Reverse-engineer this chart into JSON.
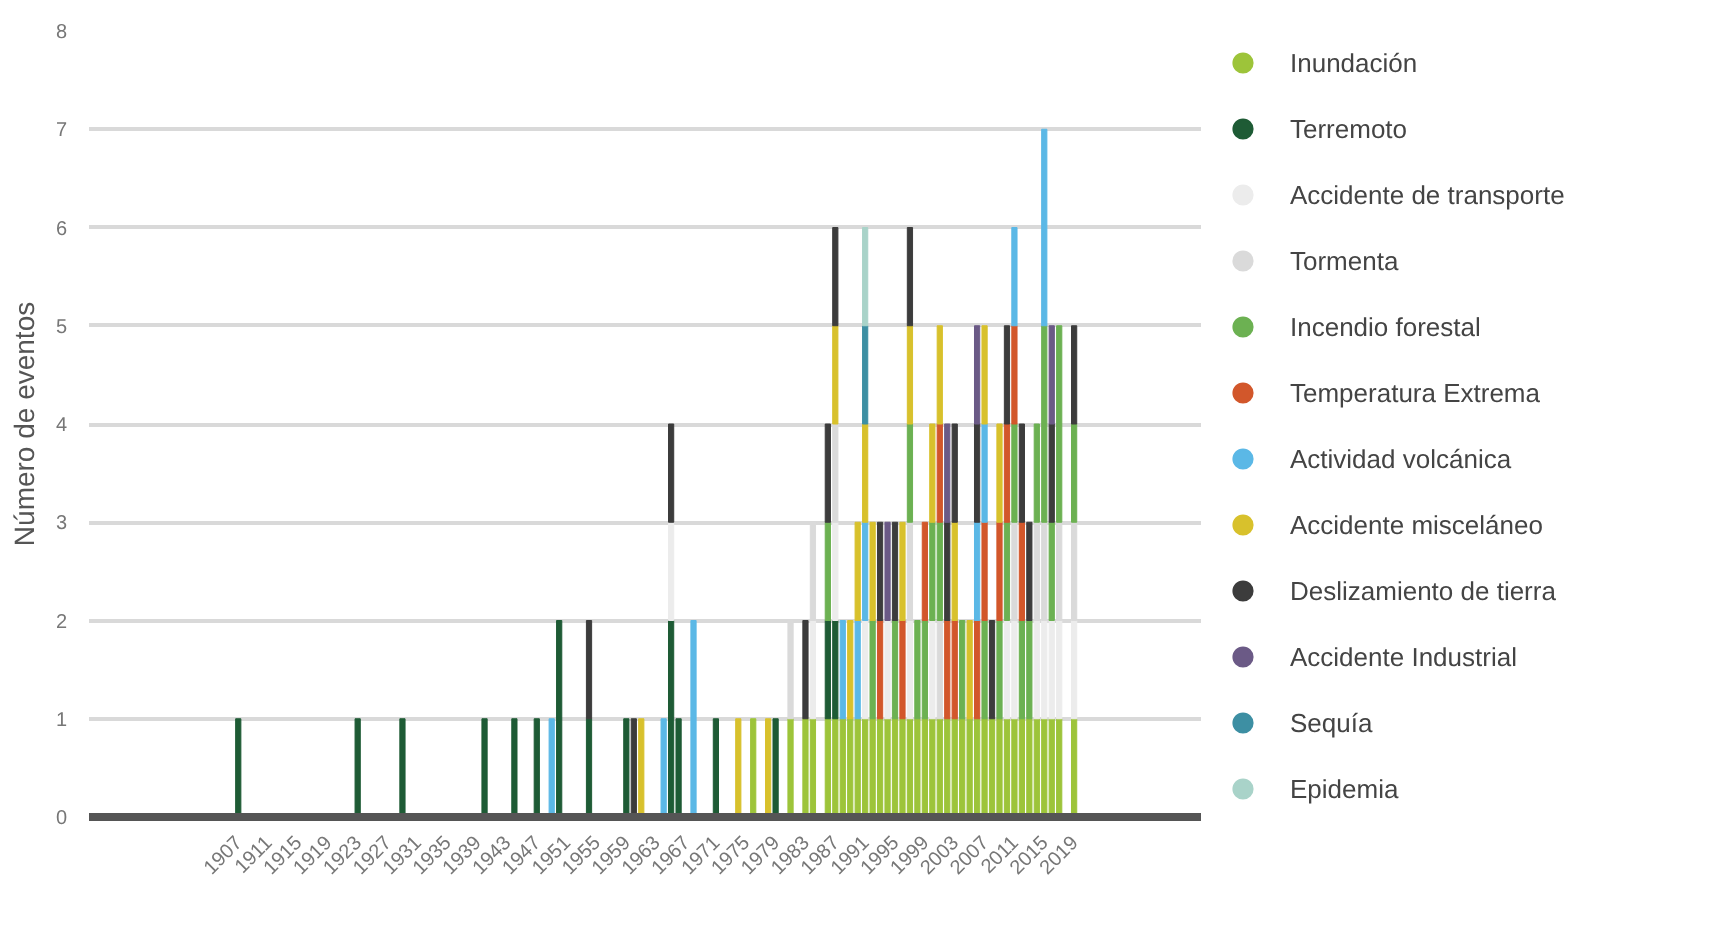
{
  "chart_data": {
    "type": "bar",
    "stacked": true,
    "ylabel": "Número de eventos",
    "xlim": [
      1887,
      2036
    ],
    "xticks": [
      1907,
      1911,
      1915,
      1919,
      1923,
      1927,
      1931,
      1935,
      1939,
      1943,
      1947,
      1951,
      1955,
      1959,
      1963,
      1967,
      1971,
      1975,
      1979,
      1983,
      1987,
      1991,
      1995,
      1999,
      2003,
      2007,
      2011,
      2015,
      2019
    ],
    "ylim": [
      0,
      8
    ],
    "yticks": [
      0,
      1,
      2,
      3,
      4,
      5,
      6,
      7,
      8
    ],
    "grid": "y",
    "legend": "right",
    "x": [
      1907,
      1923,
      1929,
      1940,
      1944,
      1947,
      1949,
      1950,
      1954,
      1959,
      1960,
      1961,
      1964,
      1965,
      1966,
      1968,
      1971,
      1974,
      1976,
      1978,
      1979,
      1981,
      1983,
      1984,
      1986,
      1987,
      1988,
      1989,
      1990,
      1991,
      1992,
      1993,
      1994,
      1995,
      1996,
      1997,
      1998,
      1999,
      2000,
      2001,
      2002,
      2003,
      2004,
      2005,
      2006,
      2007,
      2008,
      2009,
      2010,
      2011,
      2012,
      2013,
      2014,
      2015,
      2016,
      2017,
      2019
    ],
    "series": [
      {
        "name": "Inundación",
        "color": "#9dc43a",
        "values": [
          null,
          null,
          null,
          null,
          null,
          null,
          null,
          null,
          null,
          null,
          null,
          null,
          null,
          null,
          null,
          null,
          null,
          null,
          1,
          null,
          null,
          1,
          1,
          1,
          1,
          1,
          1,
          1,
          1,
          1,
          1,
          1,
          1,
          1,
          1,
          1,
          1,
          1,
          1,
          1,
          1,
          1,
          1,
          1,
          1,
          1,
          1,
          1,
          1,
          1,
          1,
          1,
          1,
          1,
          1,
          1,
          1
        ]
      },
      {
        "name": "Terremoto",
        "color": "#1e5b35",
        "values": [
          1,
          1,
          1,
          1,
          1,
          1,
          null,
          2,
          1,
          1,
          null,
          null,
          null,
          2,
          1,
          null,
          1,
          null,
          null,
          null,
          1,
          null,
          null,
          null,
          1,
          1,
          null,
          null,
          null,
          null,
          null,
          null,
          null,
          null,
          null,
          null,
          null,
          null,
          null,
          null,
          null,
          null,
          null,
          null,
          null,
          null,
          null,
          null,
          null,
          null,
          null,
          null,
          null,
          null,
          null,
          null,
          null
        ]
      },
      {
        "name": "Accidente de transporte",
        "color": "#ececec",
        "values": [
          null,
          null,
          null,
          null,
          null,
          null,
          null,
          null,
          null,
          null,
          null,
          null,
          null,
          1,
          null,
          null,
          null,
          null,
          null,
          null,
          null,
          null,
          null,
          1,
          null,
          1,
          null,
          null,
          null,
          1,
          null,
          null,
          1,
          null,
          null,
          1,
          null,
          null,
          1,
          null,
          null,
          null,
          null,
          null,
          null,
          null,
          null,
          null,
          1,
          1,
          null,
          null,
          1,
          1,
          1,
          1,
          1
        ]
      },
      {
        "name": "Tormenta",
        "color": "#dadada",
        "values": [
          null,
          null,
          null,
          null,
          null,
          null,
          null,
          null,
          null,
          null,
          null,
          null,
          null,
          null,
          null,
          null,
          null,
          null,
          null,
          null,
          null,
          1,
          null,
          1,
          null,
          1,
          null,
          null,
          null,
          null,
          null,
          null,
          null,
          null,
          null,
          1,
          null,
          null,
          null,
          1,
          null,
          null,
          null,
          null,
          null,
          null,
          null,
          null,
          null,
          1,
          null,
          null,
          1,
          1,
          null,
          1,
          1
        ]
      },
      {
        "name": "Incendio forestal",
        "color": "#6cb152",
        "values": [
          null,
          null,
          null,
          null,
          null,
          null,
          null,
          null,
          null,
          null,
          null,
          null,
          null,
          null,
          null,
          null,
          null,
          null,
          null,
          null,
          null,
          null,
          null,
          null,
          1,
          null,
          null,
          null,
          null,
          null,
          1,
          null,
          null,
          1,
          null,
          1,
          1,
          1,
          1,
          1,
          null,
          null,
          1,
          null,
          null,
          1,
          null,
          1,
          1,
          1,
          1,
          1,
          1,
          2,
          1,
          2,
          1
        ]
      },
      {
        "name": "Temperatura Extrema",
        "color": "#d2572b",
        "values": [
          null,
          null,
          null,
          null,
          null,
          null,
          null,
          null,
          null,
          null,
          null,
          null,
          null,
          null,
          null,
          null,
          null,
          null,
          null,
          null,
          null,
          null,
          null,
          null,
          null,
          null,
          null,
          null,
          null,
          null,
          null,
          1,
          null,
          null,
          1,
          null,
          null,
          1,
          null,
          1,
          1,
          1,
          null,
          null,
          1,
          1,
          null,
          1,
          1,
          1,
          1,
          null,
          null,
          null,
          null,
          null,
          null
        ]
      },
      {
        "name": "Actividad volcánica",
        "color": "#5bb8e6",
        "values": [
          null,
          null,
          null,
          null,
          null,
          null,
          1,
          null,
          null,
          null,
          null,
          null,
          1,
          null,
          null,
          2,
          null,
          null,
          null,
          null,
          null,
          null,
          null,
          null,
          null,
          null,
          1,
          null,
          1,
          1,
          null,
          null,
          null,
          null,
          null,
          null,
          null,
          null,
          null,
          null,
          null,
          null,
          null,
          null,
          1,
          1,
          null,
          null,
          null,
          1,
          null,
          null,
          null,
          2,
          null,
          null,
          null
        ]
      },
      {
        "name": "Accidente misceláneo",
        "color": "#d8c12c",
        "values": [
          null,
          null,
          null,
          null,
          null,
          null,
          null,
          null,
          null,
          null,
          null,
          1,
          null,
          null,
          null,
          null,
          null,
          1,
          null,
          1,
          null,
          null,
          null,
          null,
          null,
          1,
          null,
          1,
          1,
          1,
          1,
          null,
          null,
          null,
          1,
          1,
          null,
          null,
          1,
          1,
          null,
          1,
          null,
          1,
          null,
          1,
          null,
          1,
          null,
          null,
          null,
          null,
          null,
          null,
          null,
          null,
          null
        ]
      },
      {
        "name": "Deslizamiento de tierra",
        "color": "#3c3c3c",
        "values": [
          null,
          null,
          null,
          null,
          null,
          null,
          null,
          null,
          1,
          null,
          1,
          null,
          null,
          1,
          null,
          null,
          null,
          null,
          null,
          null,
          null,
          null,
          1,
          null,
          1,
          1,
          null,
          null,
          null,
          null,
          null,
          1,
          null,
          1,
          null,
          1,
          null,
          null,
          null,
          null,
          1,
          1,
          null,
          null,
          1,
          null,
          1,
          null,
          1,
          null,
          1,
          1,
          null,
          null,
          1,
          null,
          1
        ]
      },
      {
        "name": "Accidente Industrial",
        "color": "#6b5a86",
        "values": [
          null,
          null,
          null,
          null,
          null,
          null,
          null,
          null,
          null,
          null,
          null,
          null,
          null,
          null,
          null,
          null,
          null,
          null,
          null,
          null,
          null,
          null,
          null,
          null,
          null,
          null,
          null,
          null,
          null,
          null,
          null,
          null,
          1,
          null,
          null,
          null,
          null,
          null,
          null,
          null,
          1,
          null,
          null,
          null,
          1,
          null,
          null,
          null,
          null,
          null,
          null,
          null,
          null,
          null,
          1,
          null,
          null
        ]
      },
      {
        "name": "Sequía",
        "color": "#3d8fa3",
        "values": [
          null,
          null,
          null,
          null,
          null,
          null,
          null,
          null,
          null,
          null,
          null,
          null,
          null,
          null,
          null,
          null,
          null,
          null,
          null,
          null,
          null,
          null,
          null,
          null,
          null,
          null,
          null,
          null,
          null,
          1,
          null,
          null,
          null,
          null,
          null,
          null,
          null,
          null,
          null,
          null,
          null,
          null,
          null,
          null,
          null,
          null,
          null,
          null,
          null,
          null,
          null,
          null,
          null,
          null,
          null,
          null,
          null
        ]
      },
      {
        "name": "Epidemia",
        "color": "#a9d3c9",
        "values": [
          null,
          null,
          null,
          null,
          null,
          null,
          null,
          null,
          null,
          null,
          null,
          null,
          null,
          null,
          null,
          null,
          null,
          null,
          null,
          null,
          null,
          null,
          null,
          null,
          null,
          null,
          null,
          null,
          null,
          1,
          null,
          null,
          null,
          null,
          null,
          null,
          null,
          null,
          null,
          null,
          null,
          null,
          null,
          null,
          null,
          null,
          null,
          null,
          null,
          null,
          null,
          null,
          null,
          null,
          null,
          null,
          null
        ]
      }
    ]
  }
}
